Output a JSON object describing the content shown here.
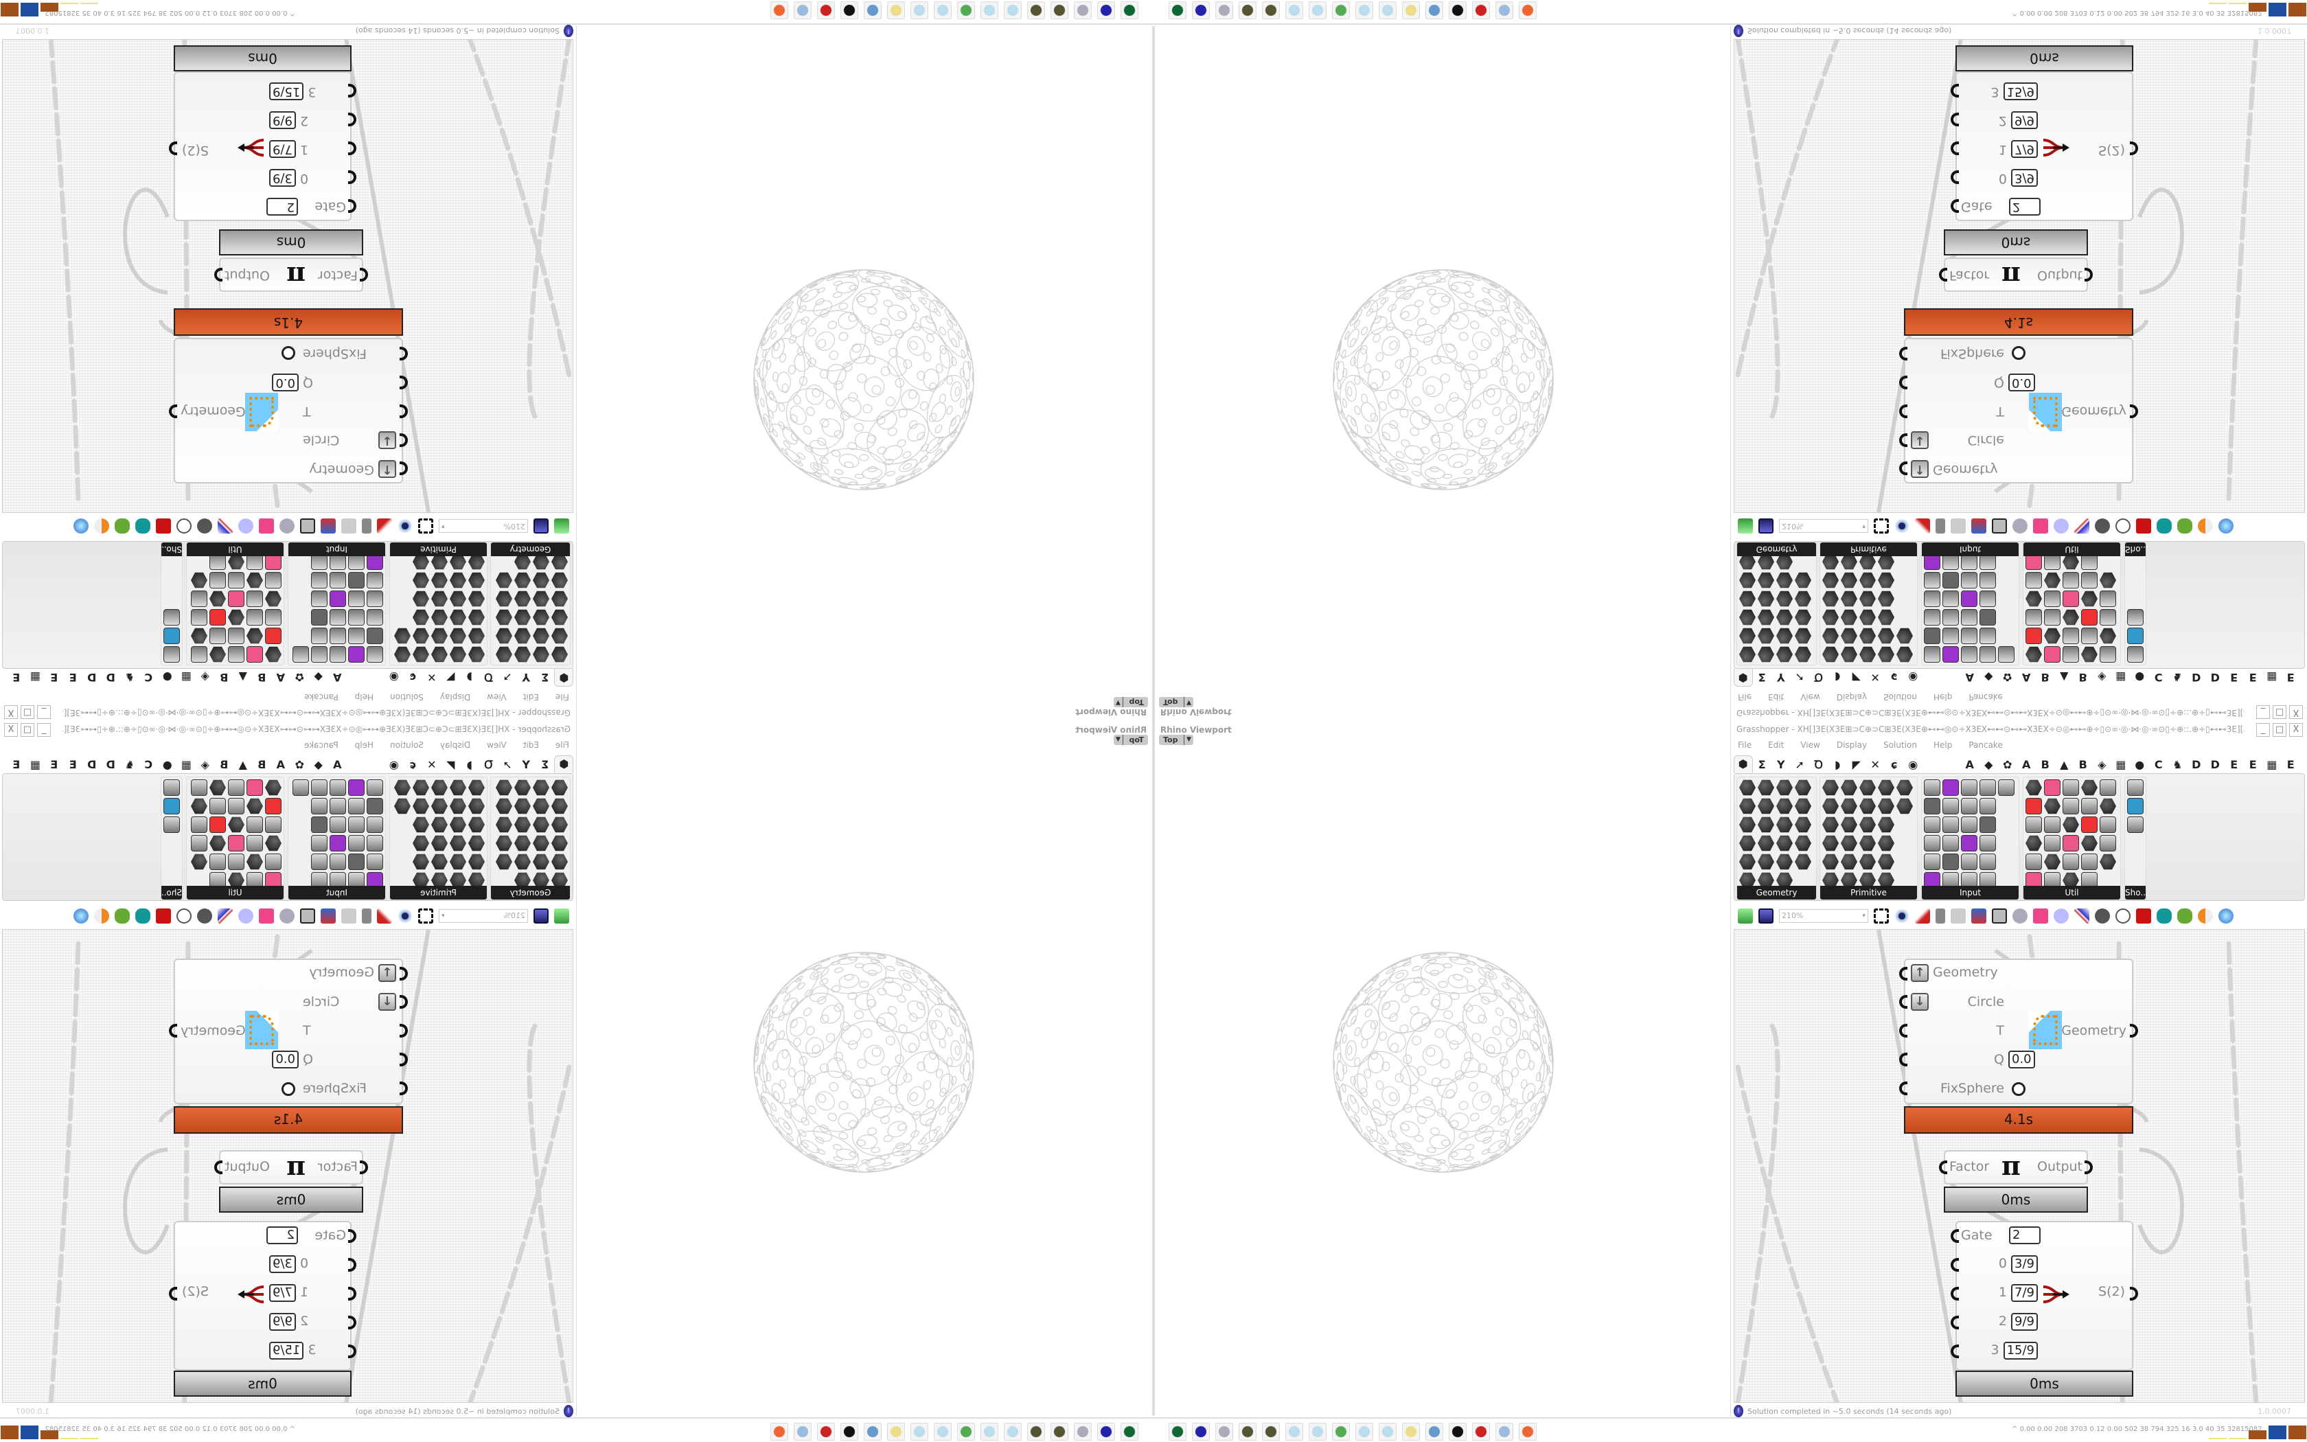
{
  "rhino": {
    "title": "Rhino Viewport",
    "view": "Top"
  },
  "grasshopper": {
    "title": "Grasshopper - XH[]3E(X3E⊞⊃C⊕⊃C⊞3E(X3E⊕⊷⊷◎⊙÷X3EX⊷⊷⊙⊷⊷X3EX÷⊙◎⊷⊷⊕÷▯⊙∞·◎·⋈·◎·∞⊙▯÷⊕::.⊕÷▯⊷⊷3E][3E⊷⊷▯÷⊕::.⊕÷▯⊙∞·◎·⋈·◎·∞⊙▯÷⊕⊷⊷◎⊙÷X3EX⊷⊷⊙⊷⊷...",
    "window_buttons": [
      "_",
      "□",
      "X"
    ],
    "menu": [
      "File",
      "Edit",
      "View",
      "Display",
      "Solution",
      "Help",
      "Pancake"
    ],
    "tabs": [
      "⬢",
      "Σ",
      "Y",
      "➚",
      "Ꝺ",
      "◗",
      "◤",
      "✕",
      "ɕ",
      "◉",
      "",
      "",
      "A",
      "◆",
      "✿",
      "A",
      "B",
      "▲",
      "B",
      "◈",
      "▦",
      "●",
      "C",
      "♞",
      "D",
      "D",
      "E",
      "E",
      "▦",
      "E"
    ],
    "ribbon_groups": [
      {
        "label": "Geometry",
        "icon_counts": [
          4,
          4,
          4,
          4,
          4,
          3
        ],
        "style": "hex"
      },
      {
        "label": "Primitive",
        "icon_counts": [
          5,
          5,
          4,
          4,
          4,
          4
        ],
        "style": "hex"
      },
      {
        "label": "Input",
        "icon_counts": [
          5,
          4,
          4,
          4,
          4,
          4
        ],
        "style": "square"
      },
      {
        "label": "Util",
        "icon_counts": [
          5,
          5,
          5,
          5,
          5,
          4
        ],
        "style": "mixed"
      },
      {
        "label": "Sho...",
        "icon_counts": [
          1,
          1,
          1
        ],
        "style": "square"
      }
    ],
    "toolbar": {
      "zoom": "210%"
    },
    "components": {
      "kangaroo": {
        "inputs": [
          "Geometry",
          "Circle",
          "T",
          "Q",
          "FixSphere"
        ],
        "q_value": "0.0",
        "output": "Geometry",
        "time": "4.1s",
        "time_color": "#d85a2a"
      },
      "pi": {
        "input": "Factor",
        "symbol": "π",
        "output": "Output",
        "time": "0ms"
      },
      "gate": {
        "gate_label": "Gate",
        "gate_value": "2",
        "inputs": [
          {
            "index": "0",
            "value": "3/9"
          },
          {
            "index": "1",
            "value": "7/9"
          },
          {
            "index": "2",
            "value": "9/9"
          },
          {
            "index": "3",
            "value": "15/9"
          }
        ],
        "output": "S(2)",
        "time": "0ms"
      }
    },
    "status": {
      "message": "Solution completed in ~5.0 seconds (14 seconds ago)",
      "version": "1.0.0007"
    }
  },
  "taskbar": {
    "icons": [
      "device-manager",
      "floppy-64",
      "scroll",
      "gear-wheel",
      "gear-wheel",
      "notepad",
      "notepad",
      "monitor",
      "notepad",
      "notepad",
      "folder",
      "control-panel",
      "cat",
      "red-app",
      "calculator",
      "firefox"
    ],
    "tray_text": "0.00 0.00 208 3703 0.12 0.00 502 38 794 325 16 3.0 40 35 32815082",
    "tray_bar_colors": [
      "#e8e870",
      "#e8e870",
      "#a0501a",
      "#1e4ea0",
      "#a0501a",
      "#60c060",
      "#c03030"
    ],
    "tray_bar_levels": [
      0.1,
      0.1,
      0.6,
      0.9,
      0.9,
      0.1,
      0.3
    ]
  }
}
